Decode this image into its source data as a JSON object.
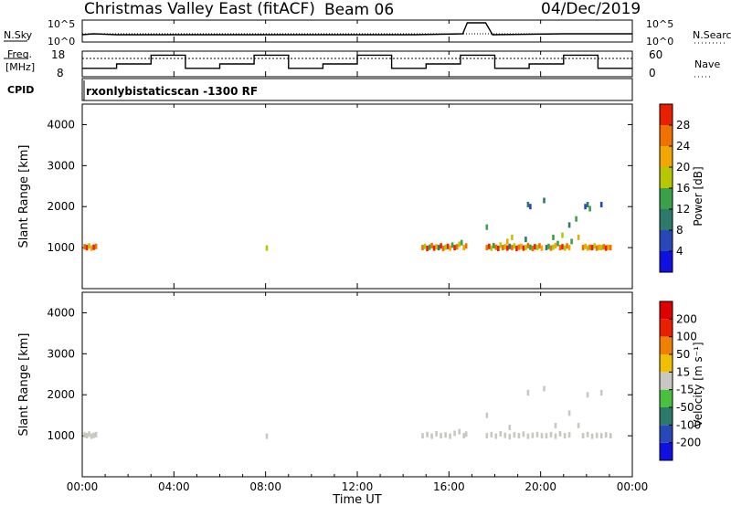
{
  "header": {
    "station": "Christmas Valley East (fitACF)",
    "beam": "Beam 06",
    "date": "04/Dec/2019"
  },
  "strip": {
    "nsky_label": "N.Sky",
    "nsearch_label": "N.Search",
    "noise_left_ticks": [
      "10^5",
      "10^0"
    ],
    "noise_right_ticks": [
      "10^5",
      "10^0"
    ],
    "freq_label": "Freq.",
    "freq_unit": "[MHz]",
    "freq_ticks": [
      "18",
      "8"
    ],
    "nave_label": "Nave",
    "nave_ticks": [
      "60",
      "0"
    ],
    "cpid_label": "CPID",
    "cpid_value": "rxonlybistaticscan -1300 RF"
  },
  "axes": {
    "y_label": "Slant Range [km]",
    "x_label": "Time UT",
    "y_ticks": [
      "1000",
      "2000",
      "3000",
      "4000"
    ],
    "x_ticks": [
      "00:00",
      "04:00",
      "08:00",
      "12:00",
      "16:00",
      "20:00",
      "00:00"
    ]
  },
  "colorbars": {
    "power": {
      "label": "Power [dB]",
      "ticks": [
        "4",
        "8",
        "12",
        "16",
        "20",
        "24",
        "28"
      ],
      "colors": [
        "#1010e0",
        "#2848b8",
        "#2e7a6a",
        "#3aa04a",
        "#b8c800",
        "#f0a800",
        "#f07000",
        "#e82000"
      ]
    },
    "velocity": {
      "label": "Velocity [m s⁻¹]",
      "ticks": [
        "200",
        "100",
        "50",
        "15",
        "-15",
        "-50",
        "-100",
        "-200"
      ],
      "colors": [
        "#1010e0",
        "#2848b8",
        "#2e7a6a",
        "#48c040",
        "#c8c8c0",
        "#f0c000",
        "#f08000",
        "#e82000",
        "#e00000"
      ]
    }
  },
  "chart_data": [
    {
      "type": "line",
      "title": "Christmas Valley East (fitACF)",
      "xlabel": "",
      "ylabel": "N.Sky / N.Search",
      "x_range_hours": [
        0,
        24
      ],
      "series": [
        {
          "name": "N.Sky",
          "x": [
            0,
            0.5,
            1.5,
            4,
            8,
            10.5,
            14.5,
            16.6,
            16.8,
            17.6,
            17.9,
            21,
            24
          ],
          "y": [
            0.3,
            0.35,
            0.3,
            0.3,
            0.3,
            0.3,
            0.3,
            0.35,
            0.95,
            0.95,
            0.3,
            0.35,
            0.35
          ]
        },
        {
          "name": "N.Search",
          "x": [
            0,
            4,
            8,
            12,
            16,
            20,
            24
          ],
          "y": [
            0.35,
            0.35,
            0.35,
            0.35,
            0.35,
            0.35,
            0.35
          ]
        }
      ]
    },
    {
      "type": "line",
      "xlabel": "",
      "ylabel": "Freq. [MHz] / Nave",
      "x_range_hours": [
        0,
        24
      ],
      "series": [
        {
          "name": "Freq.",
          "x": [
            0,
            1.5,
            1.5,
            3,
            3,
            4.5,
            4.5,
            6,
            6,
            7.5,
            7.5,
            9,
            9,
            10.5,
            10.5,
            12,
            12,
            13.5,
            13.5,
            15,
            15,
            16.5,
            16.5,
            18,
            18,
            19.5,
            19.5,
            21,
            21,
            22.5,
            22.5,
            24
          ],
          "y": [
            11,
            11,
            13,
            13,
            17,
            17,
            11,
            11,
            13,
            13,
            17,
            17,
            11,
            11,
            13,
            13,
            17,
            17,
            11,
            11,
            13,
            13,
            17,
            17,
            11,
            11,
            13,
            13,
            17,
            17,
            11,
            11
          ]
        },
        {
          "name": "Nave",
          "x": [
            0,
            24
          ],
          "y": [
            45,
            45
          ]
        }
      ]
    },
    {
      "type": "heatmap",
      "title": "Power [dB]",
      "xlabel": "Time UT",
      "ylabel": "Slant Range [km]",
      "x_range_hours": [
        0,
        24
      ],
      "ylim": [
        0,
        4500
      ],
      "color_ticks": [
        4,
        8,
        12,
        16,
        20,
        24,
        28
      ],
      "cells": [
        [
          0.05,
          1020,
          24
        ],
        [
          0.15,
          1000,
          28
        ],
        [
          0.25,
          1040,
          16
        ],
        [
          0.35,
          990,
          20
        ],
        [
          0.45,
          1010,
          28
        ],
        [
          0.55,
          1030,
          24
        ],
        [
          8.0,
          990,
          16
        ],
        [
          14.8,
          1000,
          24
        ],
        [
          14.9,
          1030,
          16
        ],
        [
          15.0,
          980,
          28
        ],
        [
          15.1,
          1010,
          12
        ],
        [
          15.2,
          1050,
          24
        ],
        [
          15.3,
          990,
          28
        ],
        [
          15.4,
          1020,
          20
        ],
        [
          15.5,
          1000,
          8
        ],
        [
          15.6,
          1040,
          28
        ],
        [
          15.7,
          980,
          24
        ],
        [
          15.8,
          1010,
          16
        ],
        [
          15.9,
          1030,
          28
        ],
        [
          16.0,
          990,
          20
        ],
        [
          16.1,
          1060,
          12
        ],
        [
          16.2,
          1000,
          28
        ],
        [
          16.3,
          1020,
          24
        ],
        [
          16.4,
          1080,
          16
        ],
        [
          16.5,
          1120,
          12
        ],
        [
          16.6,
          1000,
          20
        ],
        [
          16.7,
          1040,
          24
        ],
        [
          17.6,
          1000,
          24
        ],
        [
          17.7,
          1030,
          28
        ],
        [
          17.8,
          990,
          16
        ],
        [
          17.9,
          1050,
          12
        ],
        [
          18.0,
          1010,
          24
        ],
        [
          18.1,
          980,
          28
        ],
        [
          18.2,
          1060,
          16
        ],
        [
          18.3,
          1000,
          24
        ],
        [
          18.4,
          1020,
          20
        ],
        [
          18.5,
          990,
          28
        ],
        [
          18.6,
          1030,
          8
        ],
        [
          18.7,
          1000,
          24
        ],
        [
          18.8,
          1040,
          16
        ],
        [
          18.9,
          980,
          28
        ],
        [
          19.0,
          1010,
          24
        ],
        [
          19.1,
          1030,
          20
        ],
        [
          19.2,
          990,
          28
        ],
        [
          19.3,
          1000,
          16
        ],
        [
          19.4,
          1050,
          24
        ],
        [
          19.5,
          1010,
          12
        ],
        [
          19.6,
          980,
          24
        ],
        [
          19.7,
          1020,
          28
        ],
        [
          19.8,
          1000,
          16
        ],
        [
          19.9,
          1040,
          24
        ],
        [
          20.0,
          990,
          20
        ],
        [
          20.2,
          1000,
          8
        ],
        [
          20.3,
          1030,
          12
        ],
        [
          20.4,
          990,
          24
        ],
        [
          20.5,
          1010,
          16
        ],
        [
          20.6,
          1050,
          20
        ],
        [
          20.7,
          1100,
          12
        ],
        [
          20.8,
          1000,
          24
        ],
        [
          20.9,
          1020,
          28
        ],
        [
          21.0,
          990,
          16
        ],
        [
          21.1,
          1040,
          24
        ],
        [
          21.2,
          1000,
          20
        ],
        [
          21.8,
          1000,
          24
        ],
        [
          21.9,
          1030,
          20
        ],
        [
          22.0,
          990,
          16
        ],
        [
          22.1,
          1010,
          24
        ],
        [
          22.2,
          1000,
          28
        ],
        [
          22.3,
          1040,
          16
        ],
        [
          22.4,
          990,
          24
        ],
        [
          22.5,
          1010,
          20
        ],
        [
          22.6,
          1000,
          16
        ],
        [
          22.7,
          1020,
          24
        ],
        [
          22.8,
          990,
          28
        ],
        [
          22.9,
          1010,
          20
        ],
        [
          23.0,
          1000,
          24
        ],
        [
          17.6,
          1500,
          12
        ],
        [
          18.5,
          1150,
          20
        ],
        [
          18.7,
          1250,
          16
        ],
        [
          19.3,
          1200,
          8
        ],
        [
          20.5,
          1250,
          12
        ],
        [
          20.9,
          1300,
          16
        ],
        [
          21.2,
          1550,
          8
        ],
        [
          21.6,
          1250,
          20
        ],
        [
          21.3,
          1150,
          12
        ],
        [
          19.4,
          2050,
          8
        ],
        [
          19.5,
          2000,
          4
        ],
        [
          20.1,
          2150,
          8
        ],
        [
          21.9,
          2000,
          4
        ],
        [
          22.0,
          2050,
          8
        ],
        [
          22.1,
          1950,
          12
        ],
        [
          22.6,
          2050,
          4
        ],
        [
          21.5,
          1700,
          12
        ]
      ]
    },
    {
      "type": "heatmap",
      "title": "Velocity [m s⁻¹]",
      "xlabel": "Time UT",
      "ylabel": "Slant Range [km]",
      "x_range_hours": [
        0,
        24
      ],
      "ylim": [
        0,
        4500
      ],
      "color_ticks": [
        200,
        100,
        50,
        15,
        -15,
        -50,
        -100,
        -200
      ],
      "cells": [
        [
          0.05,
          1020,
          0
        ],
        [
          0.15,
          1000,
          0
        ],
        [
          0.25,
          1040,
          0
        ],
        [
          0.35,
          990,
          0
        ],
        [
          0.45,
          1010,
          0
        ],
        [
          0.55,
          1030,
          0
        ],
        [
          8.0,
          990,
          0
        ],
        [
          14.8,
          1000,
          0
        ],
        [
          15.0,
          1030,
          0
        ],
        [
          15.2,
          990,
          0
        ],
        [
          15.4,
          1050,
          0
        ],
        [
          15.6,
          1000,
          0
        ],
        [
          15.8,
          1020,
          0
        ],
        [
          16.0,
          990,
          0
        ],
        [
          16.2,
          1060,
          0
        ],
        [
          16.4,
          1100,
          0
        ],
        [
          16.6,
          1000,
          0
        ],
        [
          16.7,
          1040,
          0
        ],
        [
          17.6,
          1000,
          0
        ],
        [
          17.8,
          1030,
          0
        ],
        [
          18.0,
          990,
          0
        ],
        [
          18.2,
          1050,
          0
        ],
        [
          18.4,
          1010,
          0
        ],
        [
          18.6,
          980,
          0
        ],
        [
          18.8,
          1020,
          0
        ],
        [
          19.0,
          1000,
          0
        ],
        [
          19.2,
          1040,
          0
        ],
        [
          19.4,
          990,
          0
        ],
        [
          19.6,
          1010,
          0
        ],
        [
          19.8,
          1030,
          0
        ],
        [
          20.0,
          1000,
          0
        ],
        [
          20.2,
          1000,
          0
        ],
        [
          20.4,
          1030,
          0
        ],
        [
          20.6,
          990,
          0
        ],
        [
          20.8,
          1050,
          0
        ],
        [
          21.0,
          1000,
          0
        ],
        [
          21.2,
          1020,
          0
        ],
        [
          21.8,
          1000,
          0
        ],
        [
          22.0,
          1030,
          0
        ],
        [
          22.2,
          990,
          0
        ],
        [
          22.4,
          1010,
          0
        ],
        [
          22.6,
          1000,
          0
        ],
        [
          22.8,
          1020,
          0
        ],
        [
          23.0,
          1000,
          0
        ],
        [
          17.6,
          1500,
          0
        ],
        [
          18.6,
          1200,
          0
        ],
        [
          20.6,
          1250,
          0
        ],
        [
          21.2,
          1550,
          0
        ],
        [
          21.6,
          1250,
          0
        ],
        [
          19.4,
          2050,
          0
        ],
        [
          20.1,
          2150,
          0
        ],
        [
          22.0,
          2000,
          0
        ],
        [
          22.6,
          2050,
          0
        ]
      ]
    }
  ]
}
